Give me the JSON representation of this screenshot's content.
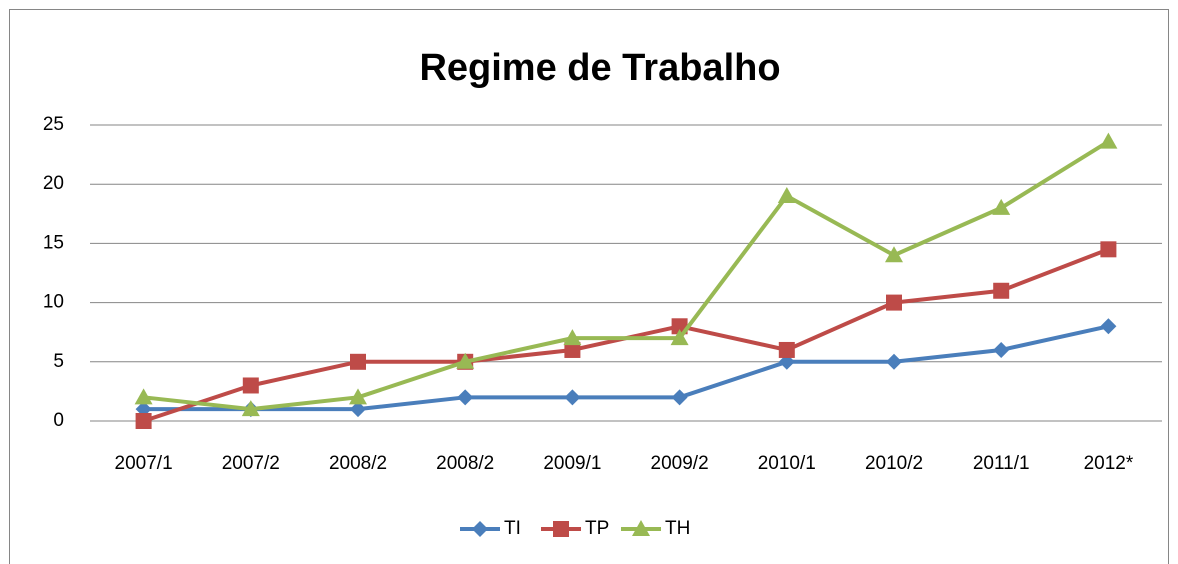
{
  "chart_data": {
    "type": "line",
    "title": "Regime de Trabalho",
    "categories": [
      "2007/1",
      "2007/2",
      "2008/2",
      "2008/2",
      "2009/1",
      "2009/2",
      "2010/1",
      "2010/2",
      "2011/1",
      "2012*"
    ],
    "series": [
      {
        "name": "TI",
        "color": "#4a7ebb",
        "marker": "diamond",
        "values": [
          1,
          1,
          1,
          2,
          2,
          2,
          5,
          5,
          6,
          8
        ]
      },
      {
        "name": "TP",
        "color": "#be4b48",
        "marker": "square",
        "values": [
          0,
          3,
          5,
          5,
          6,
          8,
          6,
          10,
          11,
          14.5
        ]
      },
      {
        "name": "TH",
        "color": "#98b954",
        "marker": "triangle",
        "values": [
          2,
          1,
          2,
          5,
          7,
          7,
          19,
          14,
          18,
          23.6
        ]
      }
    ],
    "ylim": [
      0,
      25
    ],
    "yticks": [
      0,
      5,
      10,
      15,
      20,
      25
    ],
    "grid": true,
    "legend": "bottom"
  }
}
